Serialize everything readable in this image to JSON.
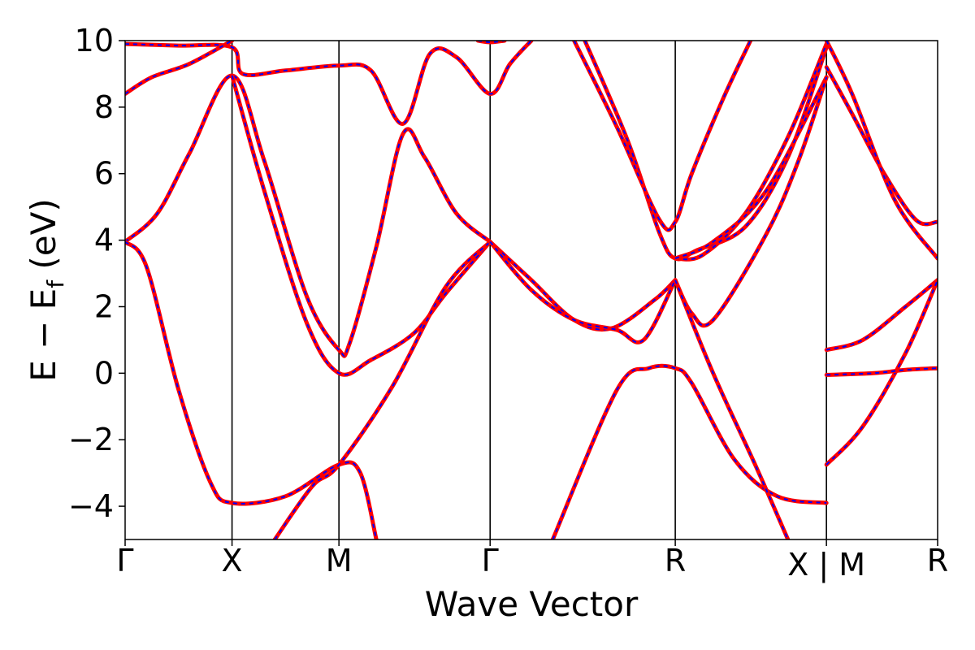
{
  "chart_data": {
    "type": "line",
    "title": "",
    "xlabel": "Wave Vector",
    "ylabel": "E − E",
    "ylabel_subscript": "f",
    "ylabel_unit": " (eV)",
    "ylim": [
      -5,
      10
    ],
    "yticks": [
      -4,
      -2,
      0,
      2,
      4,
      6,
      8,
      10
    ],
    "ytick_labels": [
      "−4",
      "−2",
      "0",
      "2",
      "4",
      "6",
      "8",
      "10"
    ],
    "xlim": [
      0,
      7.6
    ],
    "kpoints": [
      {
        "label": "Γ",
        "x": 0
      },
      {
        "label": "X",
        "x": 1
      },
      {
        "label": "M",
        "x": 2
      },
      {
        "label": "Γ",
        "x": 3.414
      },
      {
        "label": "R",
        "x": 5.146
      },
      {
        "label": "X | M",
        "x": 6.56
      },
      {
        "label": "R",
        "x": 7.6
      }
    ],
    "line_color": "#ff0000",
    "overlay_color": "#0000ff",
    "series": [
      {
        "points": [
          [
            0,
            9.9
          ],
          [
            0.5,
            9.85
          ],
          [
            1,
            9.8
          ],
          [
            1.1,
            9.0
          ],
          [
            1.5,
            9.1
          ],
          [
            2,
            9.25
          ],
          [
            2.3,
            9.1
          ],
          [
            2.6,
            7.5
          ],
          [
            2.85,
            9.6
          ],
          [
            3.1,
            9.5
          ],
          [
            3.414,
            8.4
          ],
          [
            3.6,
            9.3
          ],
          [
            3.8,
            10
          ]
        ]
      },
      {
        "points": [
          [
            0,
            8.4
          ],
          [
            0.25,
            8.9
          ],
          [
            0.6,
            9.3
          ],
          [
            1,
            10
          ]
        ]
      },
      {
        "points": [
          [
            3.3,
            10
          ],
          [
            3.414,
            9.95
          ],
          [
            3.55,
            10
          ]
        ]
      },
      {
        "points": [
          [
            0,
            3.95
          ],
          [
            0.3,
            4.8
          ],
          [
            0.6,
            6.6
          ],
          [
            1,
            8.95
          ],
          [
            1.3,
            6.4
          ],
          [
            1.7,
            2.3
          ],
          [
            2,
            0.7
          ],
          [
            2.1,
            0.9
          ],
          [
            2.35,
            3.8
          ],
          [
            2.6,
            7.2
          ],
          [
            2.8,
            6.5
          ],
          [
            3.1,
            4.8
          ],
          [
            3.414,
            3.95
          ]
        ]
      },
      {
        "points": [
          [
            0,
            3.95
          ],
          [
            0.2,
            3.2
          ],
          [
            0.5,
            -0.5
          ],
          [
            0.8,
            -3.3
          ],
          [
            1,
            -3.9
          ],
          [
            1.5,
            -3.7
          ],
          [
            2,
            -2.75
          ],
          [
            2.2,
            -3.0
          ],
          [
            2.35,
            -5
          ]
        ]
      },
      {
        "points": [
          [
            1,
            8.95
          ],
          [
            1.3,
            5.5
          ],
          [
            1.7,
            1.5
          ],
          [
            2,
            0.0
          ],
          [
            2.3,
            0.4
          ],
          [
            2.7,
            1.2
          ],
          [
            3.0,
            2.4
          ],
          [
            3.414,
            3.95
          ]
        ]
      },
      {
        "points": [
          [
            1.4,
            -5
          ],
          [
            1.75,
            -3.4
          ],
          [
            2,
            -2.75
          ],
          [
            2.5,
            -0.4
          ],
          [
            3.0,
            2.6
          ],
          [
            3.414,
            3.95
          ]
        ]
      },
      {
        "points": [
          [
            3.414,
            3.95
          ],
          [
            3.8,
            2.8
          ],
          [
            4.2,
            1.6
          ],
          [
            4.55,
            1.35
          ],
          [
            4.95,
            2.2
          ],
          [
            5.146,
            2.8
          ]
        ]
      },
      {
        "points": [
          [
            3.414,
            3.95
          ],
          [
            3.8,
            2.5
          ],
          [
            4.2,
            1.6
          ],
          [
            4.6,
            1.3
          ],
          [
            4.85,
            1.0
          ],
          [
            5.146,
            2.8
          ]
        ]
      },
      {
        "points": [
          [
            4.3,
            10
          ],
          [
            4.7,
            7.0
          ],
          [
            5.0,
            4.2
          ],
          [
            5.146,
            3.45
          ],
          [
            5.35,
            3.7
          ],
          [
            5.8,
            4.4
          ],
          [
            6.2,
            6.5
          ],
          [
            6.56,
            9.8
          ]
        ]
      },
      {
        "points": [
          [
            4.2,
            10
          ],
          [
            4.6,
            7.4
          ],
          [
            5.0,
            4.6
          ],
          [
            5.146,
            4.55
          ],
          [
            5.3,
            6.0
          ],
          [
            5.6,
            8.3
          ],
          [
            5.85,
            10
          ]
        ]
      },
      {
        "points": [
          [
            5.146,
            3.45
          ],
          [
            5.4,
            3.55
          ],
          [
            5.8,
            4.8
          ],
          [
            6.2,
            7.1
          ],
          [
            6.56,
            9.9
          ]
        ]
      },
      {
        "points": [
          [
            5.146,
            3.45
          ],
          [
            5.5,
            3.95
          ],
          [
            6.0,
            5.5
          ],
          [
            6.56,
            8.9
          ]
        ]
      },
      {
        "points": [
          [
            5.146,
            2.8
          ],
          [
            5.3,
            1.8
          ],
          [
            5.5,
            1.6
          ],
          [
            6.0,
            4.2
          ],
          [
            6.3,
            6.4
          ],
          [
            6.56,
            8.9
          ]
        ]
      },
      {
        "points": [
          [
            4.0,
            -5
          ],
          [
            4.6,
            -0.5
          ],
          [
            4.9,
            0.15
          ],
          [
            5.146,
            0.15
          ],
          [
            5.3,
            -0.3
          ],
          [
            5.7,
            -2.6
          ],
          [
            6.1,
            -3.7
          ],
          [
            6.56,
            -3.9
          ]
        ]
      },
      {
        "points": [
          [
            5.146,
            2.8
          ],
          [
            5.5,
            0.0
          ],
          [
            5.9,
            -2.8
          ],
          [
            6.2,
            -5
          ]
        ]
      },
      {
        "points": [
          [
            6.56,
            9.2
          ],
          [
            6.8,
            7.8
          ],
          [
            7.1,
            6.0
          ],
          [
            7.4,
            4.6
          ],
          [
            7.6,
            4.55
          ]
        ]
      },
      {
        "points": [
          [
            6.56,
            10
          ],
          [
            6.8,
            8.4
          ],
          [
            7.2,
            5.2
          ],
          [
            7.6,
            3.45
          ]
        ]
      },
      {
        "points": [
          [
            6.56,
            0.7
          ],
          [
            6.9,
            1.0
          ],
          [
            7.3,
            2.0
          ],
          [
            7.6,
            2.8
          ]
        ]
      },
      {
        "points": [
          [
            6.56,
            -2.75
          ],
          [
            6.9,
            -1.6
          ],
          [
            7.3,
            0.6
          ],
          [
            7.6,
            2.8
          ]
        ]
      },
      {
        "points": [
          [
            6.56,
            -0.05
          ],
          [
            7.0,
            0.0
          ],
          [
            7.3,
            0.1
          ],
          [
            7.6,
            0.15
          ]
        ]
      }
    ]
  }
}
